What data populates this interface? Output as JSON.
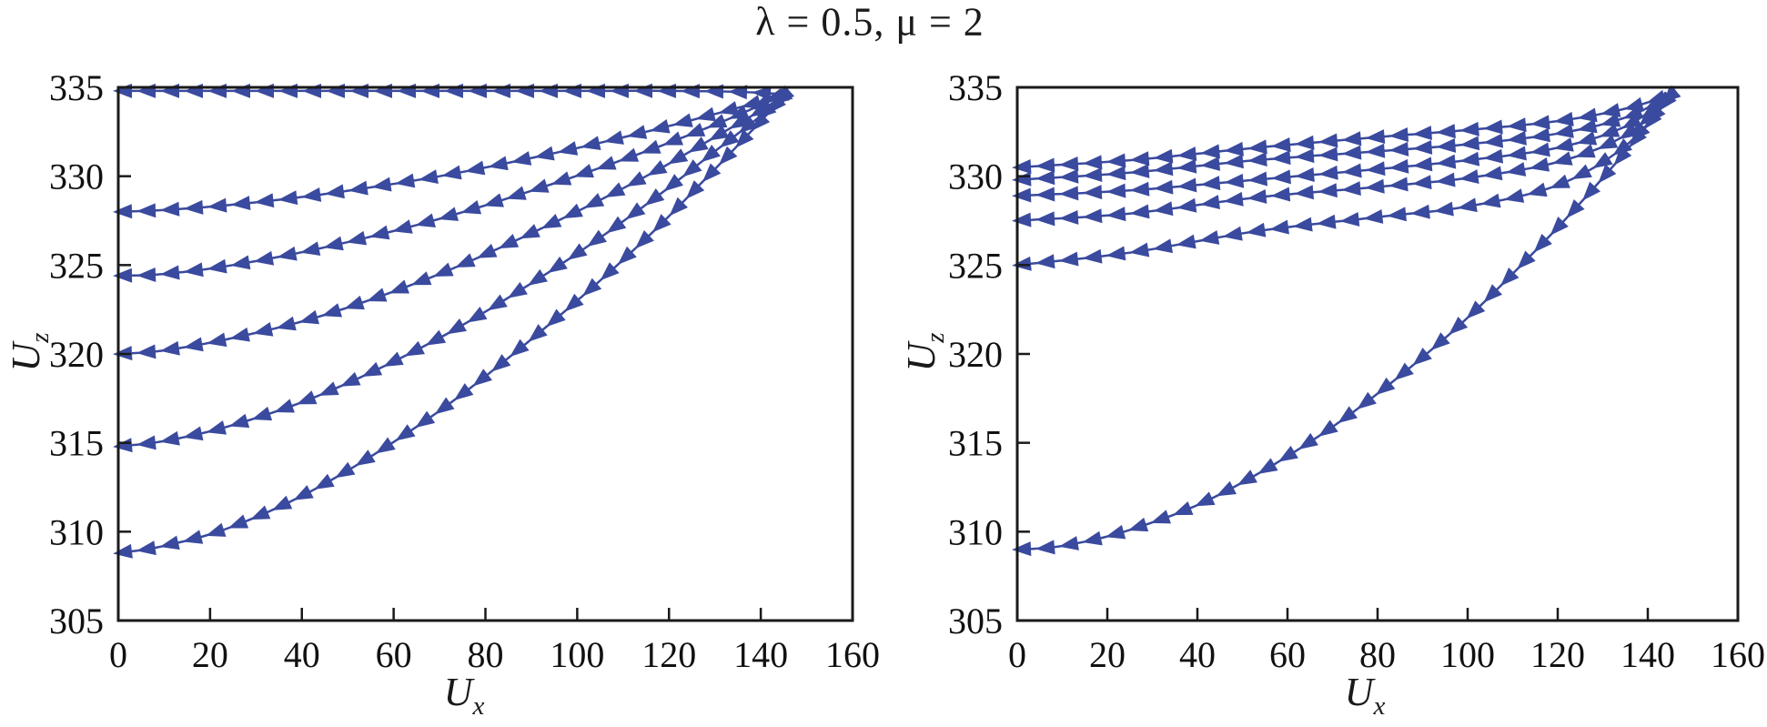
{
  "title": "λ = 0.5, μ = 2",
  "chart_data": [
    {
      "type": "line",
      "panel": "left",
      "title": "λ = 0.5, μ = 2",
      "xlabel_main": "U",
      "xlabel_sub": "x",
      "ylabel_main": "U",
      "ylabel_sub": "z",
      "xlim": [
        0,
        160
      ],
      "ylim": [
        305,
        335
      ],
      "xticks": [
        0,
        20,
        40,
        60,
        80,
        100,
        120,
        140,
        160
      ],
      "yticks": [
        305,
        310,
        315,
        320,
        325,
        330,
        335
      ],
      "grid": false,
      "legend": "none",
      "marker": "left-triangle",
      "color": "#3a4a9e",
      "series": [
        {
          "name": "trajectory-end-334.8",
          "points": [
            [
              0,
              334.8
            ],
            [
              20,
              334.8
            ],
            [
              40,
              334.8
            ],
            [
              60,
              334.8
            ],
            [
              80,
              334.8
            ],
            [
              100,
              334.8
            ],
            [
              120,
              334.8
            ],
            [
              135,
              334.75
            ],
            [
              145.4,
              334.6
            ]
          ]
        },
        {
          "name": "trajectory-end-328.0",
          "points": [
            [
              0,
              328.0
            ],
            [
              10,
              328.1
            ],
            [
              25,
              328.4
            ],
            [
              45,
              329.0
            ],
            [
              70,
              330.0
            ],
            [
              95,
              331.3
            ],
            [
              115,
              332.5
            ],
            [
              130,
              333.5
            ],
            [
              140,
              334.2
            ],
            [
              145.4,
              334.6
            ]
          ]
        },
        {
          "name": "trajectory-end-324.4",
          "points": [
            [
              0,
              324.4
            ],
            [
              10,
              324.5
            ],
            [
              25,
              325.0
            ],
            [
              45,
              326.0
            ],
            [
              70,
              327.6
            ],
            [
              95,
              329.6
            ],
            [
              115,
              331.4
            ],
            [
              130,
              332.9
            ],
            [
              140,
              334.0
            ],
            [
              145.4,
              334.6
            ]
          ]
        },
        {
          "name": "trajectory-end-320.0",
          "points": [
            [
              0,
              320.0
            ],
            [
              10,
              320.2
            ],
            [
              25,
              320.9
            ],
            [
              45,
              322.2
            ],
            [
              70,
              324.5
            ],
            [
              95,
              327.4
            ],
            [
              115,
              330.0
            ],
            [
              130,
              332.2
            ],
            [
              140,
              333.7
            ],
            [
              145.4,
              334.6
            ]
          ]
        },
        {
          "name": "trajectory-end-314.8",
          "points": [
            [
              0,
              314.8
            ],
            [
              10,
              315.1
            ],
            [
              25,
              316.0
            ],
            [
              45,
              317.8
            ],
            [
              70,
              320.9
            ],
            [
              95,
              324.8
            ],
            [
              115,
              328.4
            ],
            [
              130,
              331.4
            ],
            [
              140,
              333.4
            ],
            [
              145.4,
              334.6
            ]
          ]
        },
        {
          "name": "trajectory-end-308.8",
          "points": [
            [
              0,
              308.8
            ],
            [
              10,
              309.2
            ],
            [
              25,
              310.3
            ],
            [
              45,
              312.7
            ],
            [
              70,
              316.8
            ],
            [
              95,
              321.9
            ],
            [
              115,
              326.5
            ],
            [
              130,
              330.4
            ],
            [
              140,
              333.1
            ],
            [
              145.4,
              334.6
            ]
          ]
        }
      ]
    },
    {
      "type": "line",
      "panel": "right",
      "xlabel_main": "U",
      "xlabel_sub": "x",
      "ylabel_main": "U",
      "ylabel_sub": "z",
      "xlim": [
        0,
        160
      ],
      "ylim": [
        305,
        335
      ],
      "xticks": [
        0,
        20,
        40,
        60,
        80,
        100,
        120,
        140,
        160
      ],
      "yticks": [
        305,
        310,
        315,
        320,
        325,
        330,
        335
      ],
      "grid": false,
      "legend": "none",
      "marker": "left-triangle",
      "color": "#3a4a9e",
      "series": [
        {
          "name": "trajectory-end-330.5",
          "points": [
            [
              0,
              330.5
            ],
            [
              25,
              330.9
            ],
            [
              53,
              331.6
            ],
            [
              80,
              332.2
            ],
            [
              100,
              332.6
            ],
            [
              120,
              333.1
            ],
            [
              135,
              333.8
            ],
            [
              145.4,
              334.6
            ]
          ]
        },
        {
          "name": "trajectory-end-329.8",
          "points": [
            [
              0,
              329.8
            ],
            [
              25,
              330.2
            ],
            [
              53,
              330.9
            ],
            [
              80,
              331.4
            ],
            [
              100,
              331.8
            ],
            [
              120,
              332.4
            ],
            [
              135,
              333.3
            ],
            [
              145.4,
              334.6
            ]
          ]
        },
        {
          "name": "trajectory-end-328.9",
          "points": [
            [
              0,
              328.9
            ],
            [
              25,
              329.2
            ],
            [
              53,
              329.8
            ],
            [
              80,
              330.4
            ],
            [
              100,
              330.9
            ],
            [
              120,
              331.6
            ],
            [
              135,
              332.8
            ],
            [
              145.4,
              334.6
            ]
          ]
        },
        {
          "name": "trajectory-end-327.5",
          "points": [
            [
              0,
              327.5
            ],
            [
              25,
              327.9
            ],
            [
              53,
              328.8
            ],
            [
              80,
              329.4
            ],
            [
              100,
              329.9
            ],
            [
              120,
              330.8
            ],
            [
              135,
              332.3
            ],
            [
              145.4,
              334.6
            ]
          ]
        },
        {
          "name": "trajectory-end-325.0",
          "points": [
            [
              0,
              325.0
            ],
            [
              25,
              325.7
            ],
            [
              53,
              326.9
            ],
            [
              80,
              327.7
            ],
            [
              100,
              328.3
            ],
            [
              120,
              329.5
            ],
            [
              135,
              331.7
            ],
            [
              145.4,
              334.6
            ]
          ]
        },
        {
          "name": "trajectory-end-309.0",
          "points": [
            [
              0,
              309.0
            ],
            [
              10,
              309.2
            ],
            [
              25,
              310.1
            ],
            [
              45,
              312.1
            ],
            [
              70,
              315.9
            ],
            [
              95,
              320.9
            ],
            [
              115,
              325.8
            ],
            [
              130,
              329.9
            ],
            [
              140,
              332.9
            ],
            [
              145.4,
              334.6
            ]
          ]
        }
      ]
    }
  ],
  "style": {
    "curve_color": "#3a4a9e",
    "frame_color": "#1a1a1a",
    "text_color": "#111111"
  }
}
